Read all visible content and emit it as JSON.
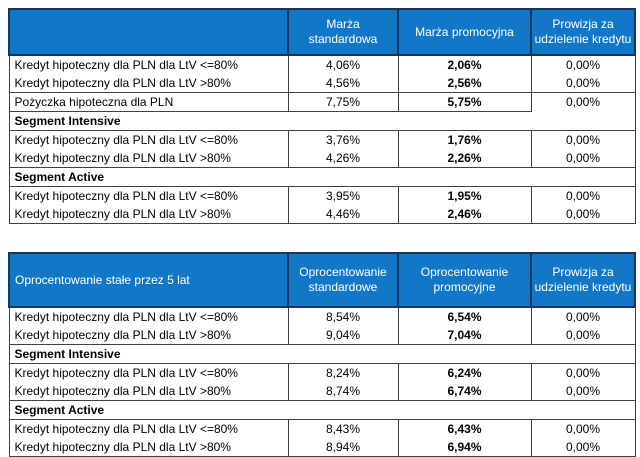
{
  "colors": {
    "header_bg": "#1377c8",
    "header_divider": "#17375e",
    "header_text": "#ffffff",
    "grid_border": "#404040",
    "body_text": "#000000"
  },
  "table1": {
    "header": {
      "col1": "",
      "col2": "Marża standardowa",
      "col3": "Marża promocyjna",
      "col4": "Prowizja za udzielenie kredytu"
    },
    "rows": [
      {
        "label": "Kredyt hipoteczny dla PLN dla LtV <=80%",
        "standard": "4,06%",
        "promo": "2,06%",
        "fee": "0,00%"
      },
      {
        "label": "Kredyt hipoteczny dla PLN dla LtV >80%",
        "standard": "4,56%",
        "promo": "2,56%",
        "fee": "0,00%"
      },
      {
        "label": "Pożyczka hipoteczna dla PLN",
        "standard": "7,75%",
        "promo": "5,75%",
        "fee": "0,00%"
      },
      {
        "label": "Segment Intensive"
      },
      {
        "label": "Kredyt hipoteczny dla PLN dla LtV <=80%",
        "standard": "3,76%",
        "promo": "1,76%",
        "fee": "0,00%"
      },
      {
        "label": "Kredyt hipoteczny dla PLN dla LtV >80%",
        "standard": "4,26%",
        "promo": "2,26%",
        "fee": "0,00%"
      },
      {
        "label": "Segment Active"
      },
      {
        "label": "Kredyt hipoteczny dla PLN dla LtV <=80%",
        "standard": "3,95%",
        "promo": "1,95%",
        "fee": "0,00%"
      },
      {
        "label": "Kredyt hipoteczny dla PLN dla LtV >80%",
        "standard": "4,46%",
        "promo": "2,46%",
        "fee": "0,00%"
      }
    ]
  },
  "table2": {
    "header": {
      "col1": "Oprocentowanie stałe przez 5 lat",
      "col2": "Oprocentowanie standardowe",
      "col3": "Oprocentowanie promocyjne",
      "col4": "Prowizja za udzielenie kredytu"
    },
    "rows": [
      {
        "label": "Kredyt hipoteczny dla PLN dla LtV <=80%",
        "standard": "8,54%",
        "promo": "6,54%",
        "fee": "0,00%"
      },
      {
        "label": "Kredyt hipoteczny dla PLN dla LtV >80%",
        "standard": "9,04%",
        "promo": "7,04%",
        "fee": "0,00%"
      },
      {
        "label": "Segment Intensive"
      },
      {
        "label": "Kredyt hipoteczny dla PLN dla LtV <=80%",
        "standard": "8,24%",
        "promo": "6,24%",
        "fee": "0,00%"
      },
      {
        "label": "Kredyt hipoteczny dla PLN dla LtV >80%",
        "standard": "8,74%",
        "promo": "6,74%",
        "fee": "0,00%"
      },
      {
        "label": "Segment Active"
      },
      {
        "label": "Kredyt hipoteczny dla PLN dla LtV <=80%",
        "standard": "8,43%",
        "promo": "6,43%",
        "fee": "0,00%"
      },
      {
        "label": "Kredyt hipoteczny dla PLN dla LtV >80%",
        "standard": "8,94%",
        "promo": "6,94%",
        "fee": "0,00%"
      }
    ]
  }
}
